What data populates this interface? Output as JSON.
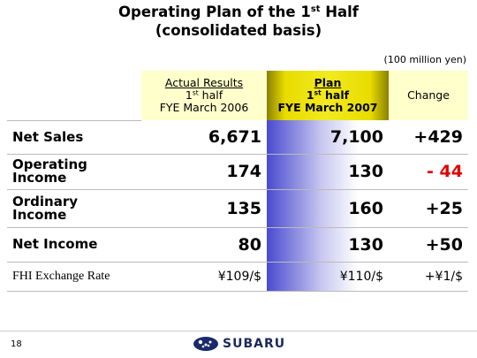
{
  "header": {
    "title": {
      "line1_start": "Operating Plan of the 1",
      "line1_sup": "st",
      "line1_end": "Half",
      "line2": "(consolidated basis)"
    },
    "unit": "(100 million yen)"
  },
  "table": {
    "columns": [
      {
        "name": "Actual Results",
        "period_start": "1",
        "period_sup": "st",
        "period_end": "half",
        "fiscal_year": "FYE March 2006"
      },
      {
        "name": "Plan",
        "period_start": "1",
        "period_sup": "st",
        "period_end": "half",
        "fiscal_year": "FYE March 2007"
      },
      {
        "name": "Change"
      }
    ],
    "rows": [
      [
        "Net Sales",
        "6,671",
        "7,100",
        "+429"
      ],
      [
        "Operating Income",
        "174",
        "130",
        "- 44"
      ],
      [
        "Ordinary Income",
        "135",
        "160",
        "+25"
      ],
      [
        "Net Income",
        "80",
        "130",
        "+50"
      ],
      [
        "FHI Exchange Rate",
        "¥109/$",
        "¥110/$",
        "+¥1/$"
      ]
    ]
  },
  "footer": {
    "page_number": "18",
    "logo": "SUBARU"
  }
}
